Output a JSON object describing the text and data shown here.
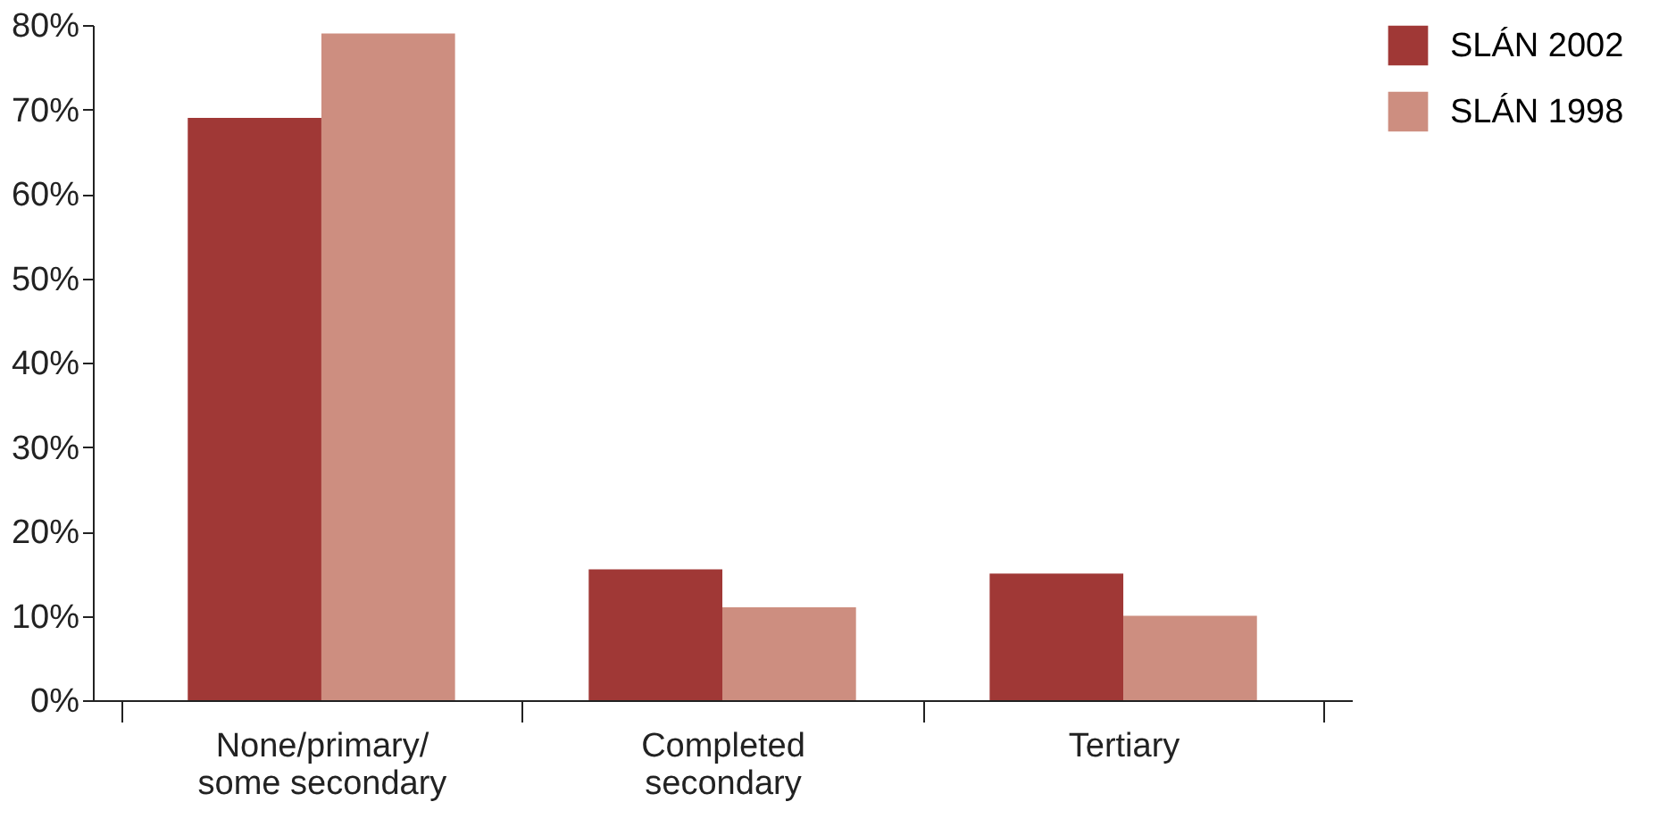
{
  "chart_data": {
    "type": "bar",
    "categories": [
      "None/primary/ some secondary",
      "Completed secondary",
      "Tertiary"
    ],
    "series": [
      {
        "name": "SLÁN 2002",
        "color": "#a03836",
        "values": [
          69,
          15.5,
          15
        ]
      },
      {
        "name": "SLÁN 1998",
        "color": "#cd8e80",
        "values": [
          79,
          11,
          10
        ]
      }
    ],
    "ylim": [
      0,
      80
    ],
    "yticks": [
      {
        "value": 0,
        "label": "0%"
      },
      {
        "value": 10,
        "label": "10%"
      },
      {
        "value": 20,
        "label": "20%"
      },
      {
        "value": 30,
        "label": "30%"
      },
      {
        "value": 40,
        "label": "40%"
      },
      {
        "value": 50,
        "label": "50%"
      },
      {
        "value": 60,
        "label": "60%"
      },
      {
        "value": 70,
        "label": "70%"
      },
      {
        "value": 80,
        "label": "80%"
      }
    ],
    "grid": false,
    "legend": "right"
  }
}
